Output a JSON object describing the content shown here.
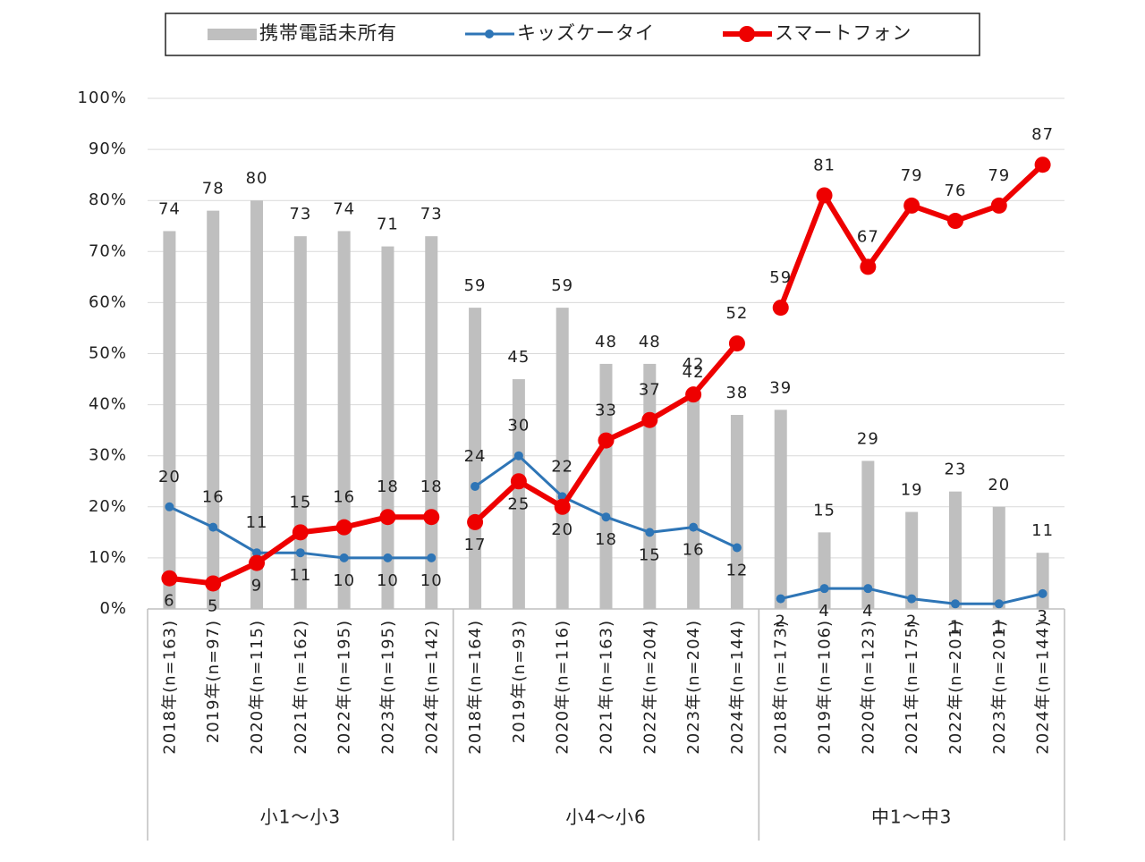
{
  "chart_data": {
    "type": "bar",
    "groups": [
      {
        "label": "小1～小3",
        "categories": [
          "2018年(n=163)",
          "2019年(n=97)",
          "2020年(n=115)",
          "2021年(n=162)",
          "2022年(n=195)",
          "2023年(n=195)",
          "2024年(n=142)"
        ]
      },
      {
        "label": "小4～小6",
        "categories": [
          "2018年(n=164)",
          "2019年(n=93)",
          "2020年(n=116)",
          "2021年(n=163)",
          "2022年(n=204)",
          "2023年(n=204)",
          "2024年(n=144)"
        ]
      },
      {
        "label": "中1～中3",
        "categories": [
          "2018年(n=173)",
          "2019年(n=106)",
          "2020年(n=123)",
          "2021年(n=175)",
          "2022年(n=201)",
          "2023年(n=201)",
          "2024年(n=144)"
        ]
      }
    ],
    "series": [
      {
        "name": "携帯電話未所有",
        "type": "bar",
        "color": "#bfbfbf",
        "values": [
          74,
          78,
          80,
          73,
          74,
          71,
          73,
          59,
          45,
          59,
          48,
          48,
          42,
          38,
          39,
          15,
          29,
          19,
          23,
          20,
          11
        ]
      },
      {
        "name": "キッズケータイ",
        "type": "line",
        "color": "#2e75b6",
        "values": [
          20,
          16,
          11,
          11,
          10,
          10,
          10,
          24,
          30,
          22,
          18,
          15,
          16,
          12,
          2,
          4,
          4,
          2,
          1,
          1,
          3
        ]
      },
      {
        "name": "スマートフォン",
        "type": "line",
        "color": "#ee0000",
        "values": [
          6,
          5,
          9,
          15,
          16,
          18,
          18,
          17,
          25,
          20,
          33,
          37,
          42,
          52,
          59,
          81,
          67,
          79,
          76,
          79,
          87
        ]
      }
    ],
    "ylim": [
      0,
      100
    ],
    "yticks": [
      {
        "value": 0,
        "label": "0%"
      },
      {
        "value": 10,
        "label": "10%"
      },
      {
        "value": 20,
        "label": "20%"
      },
      {
        "value": 30,
        "label": "30%"
      },
      {
        "value": 40,
        "label": "40%"
      },
      {
        "value": 50,
        "label": "50%"
      },
      {
        "value": 60,
        "label": "60%"
      },
      {
        "value": 70,
        "label": "70%"
      },
      {
        "value": 80,
        "label": "80%"
      },
      {
        "value": 90,
        "label": "90%"
      },
      {
        "value": 100,
        "label": "100%"
      }
    ],
    "grid": true
  }
}
